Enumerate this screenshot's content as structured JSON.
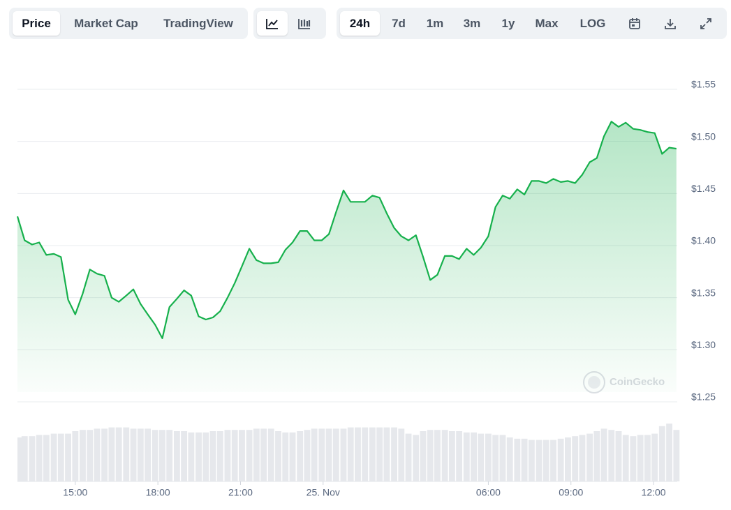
{
  "toolbar": {
    "views": [
      "Price",
      "Market Cap",
      "TradingView"
    ],
    "ranges": [
      "24h",
      "7d",
      "1m",
      "3m",
      "1y",
      "Max",
      "LOG"
    ]
  },
  "watermark": "CoinGecko",
  "chart_data": {
    "type": "area",
    "color": "#16b04c",
    "grid": true,
    "x": [
      12.9,
      13.16,
      13.43,
      13.69,
      13.95,
      14.22,
      14.48,
      14.74,
      15.0,
      15.27,
      15.53,
      15.79,
      16.06,
      16.32,
      16.58,
      16.85,
      17.11,
      17.37,
      17.63,
      17.9,
      18.16,
      18.42,
      18.69,
      18.95,
      19.21,
      19.48,
      19.74,
      20.0,
      20.26,
      20.53,
      20.79,
      21.05,
      21.32,
      21.58,
      21.84,
      22.11,
      22.37,
      22.63,
      22.89,
      23.16,
      23.42,
      23.68,
      23.95,
      24.21,
      24.47,
      24.74,
      25.0,
      25.26,
      25.52,
      25.79,
      26.05,
      26.31,
      26.58,
      26.84,
      27.1,
      27.37,
      27.63,
      27.89,
      28.15,
      28.42,
      28.68,
      28.94,
      29.21,
      29.47,
      29.73,
      30.0,
      30.26,
      30.52,
      30.78,
      31.05,
      31.31,
      31.57,
      31.84,
      32.1,
      32.36,
      32.63,
      32.89,
      33.15,
      33.41,
      33.68,
      33.94,
      34.2,
      34.47,
      34.73,
      34.99,
      35.26,
      35.52,
      35.78,
      36.04,
      36.31,
      36.57,
      36.83
    ],
    "values": [
      1.428,
      1.405,
      1.401,
      1.403,
      1.391,
      1.392,
      1.389,
      1.348,
      1.334,
      1.354,
      1.377,
      1.373,
      1.371,
      1.35,
      1.346,
      1.352,
      1.358,
      1.344,
      1.334,
      1.324,
      1.311,
      1.341,
      1.349,
      1.357,
      1.352,
      1.332,
      1.329,
      1.331,
      1.337,
      1.35,
      1.364,
      1.38,
      1.397,
      1.386,
      1.383,
      1.383,
      1.384,
      1.396,
      1.403,
      1.414,
      1.414,
      1.405,
      1.405,
      1.411,
      1.432,
      1.453,
      1.442,
      1.442,
      1.442,
      1.448,
      1.446,
      1.431,
      1.417,
      1.409,
      1.405,
      1.41,
      1.389,
      1.367,
      1.372,
      1.39,
      1.39,
      1.387,
      1.397,
      1.391,
      1.398,
      1.409,
      1.437,
      1.448,
      1.445,
      1.454,
      1.449,
      1.462,
      1.462,
      1.46,
      1.464,
      1.461,
      1.462,
      1.46,
      1.468,
      1.48,
      1.484,
      1.505,
      1.519,
      1.514,
      1.518,
      1.512,
      1.511,
      1.509,
      1.508,
      1.488,
      1.494,
      1.493
    ],
    "volumes": [
      70,
      72,
      72,
      74,
      74,
      76,
      76,
      76,
      80,
      82,
      82,
      84,
      84,
      86,
      86,
      86,
      84,
      84,
      84,
      82,
      82,
      82,
      80,
      80,
      78,
      78,
      78,
      80,
      80,
      82,
      82,
      82,
      82,
      84,
      84,
      84,
      80,
      78,
      78,
      80,
      82,
      84,
      84,
      84,
      84,
      84,
      86,
      86,
      86,
      86,
      86,
      86,
      86,
      84,
      76,
      74,
      80,
      82,
      82,
      82,
      80,
      80,
      78,
      78,
      76,
      76,
      74,
      74,
      70,
      68,
      68,
      66,
      66,
      66,
      66,
      68,
      70,
      72,
      74,
      76,
      80,
      84,
      82,
      80,
      74,
      72,
      74,
      74,
      76,
      88,
      92,
      82
    ],
    "vlim": [
      0,
      100
    ],
    "xlim": [
      12.9,
      36.86
    ],
    "xticks": [
      {
        "value": 15,
        "label": "15:00"
      },
      {
        "value": 18,
        "label": "18:00"
      },
      {
        "value": 21,
        "label": "21:00"
      },
      {
        "value": 24,
        "label": "25. Nov"
      },
      {
        "value": 30,
        "label": "06:00"
      },
      {
        "value": 33,
        "label": "09:00"
      },
      {
        "value": 36,
        "label": "12:00"
      }
    ],
    "ylim": [
      1.25,
      1.55
    ],
    "yticks": [
      {
        "value": 1.25,
        "label": "$1.25"
      },
      {
        "value": 1.3,
        "label": "$1.30"
      },
      {
        "value": 1.35,
        "label": "$1.35"
      },
      {
        "value": 1.4,
        "label": "$1.40"
      },
      {
        "value": 1.45,
        "label": "$1.45"
      },
      {
        "value": 1.5,
        "label": "$1.50"
      },
      {
        "value": 1.55,
        "label": "$1.55"
      }
    ]
  }
}
